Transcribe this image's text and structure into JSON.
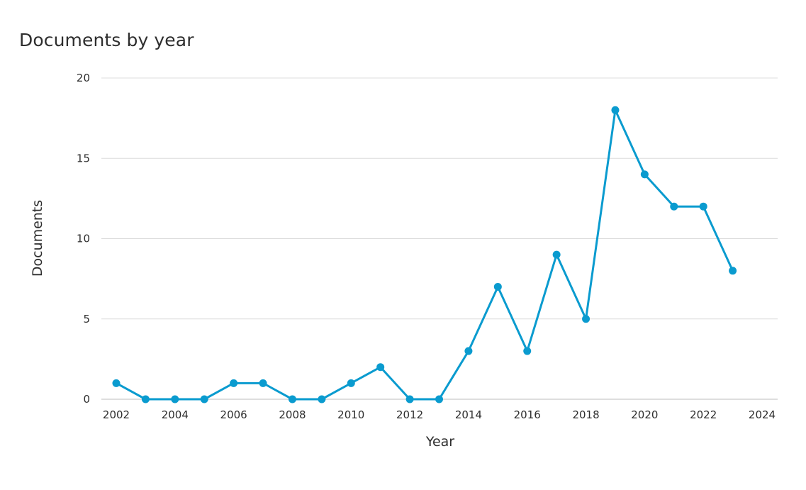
{
  "chart_data": {
    "type": "line",
    "title": "Documents by year",
    "xlabel": "Year",
    "ylabel": "Documents",
    "x": [
      2002,
      2003,
      2004,
      2005,
      2006,
      2007,
      2008,
      2009,
      2010,
      2011,
      2012,
      2013,
      2014,
      2015,
      2016,
      2017,
      2018,
      2019,
      2020,
      2021,
      2022,
      2023
    ],
    "values": [
      1,
      0,
      0,
      0,
      1,
      1,
      0,
      0,
      1,
      2,
      0,
      0,
      3,
      7,
      3,
      9,
      5,
      18,
      14,
      12,
      12,
      8
    ],
    "xlim": [
      2002,
      2024
    ],
    "ylim": [
      0,
      20
    ],
    "x_ticks": [
      "2002",
      "2004",
      "2006",
      "2008",
      "2010",
      "2012",
      "2014",
      "2016",
      "2018",
      "2020",
      "2022",
      "2024"
    ],
    "y_ticks": [
      "0",
      "5",
      "10",
      "15",
      "20"
    ],
    "grid": "horizontal",
    "colors": {
      "line": "#0a9bcf",
      "grid": "#dcdcdc",
      "baseline": "#bcbcbc",
      "text": "#2e2e2e"
    }
  }
}
